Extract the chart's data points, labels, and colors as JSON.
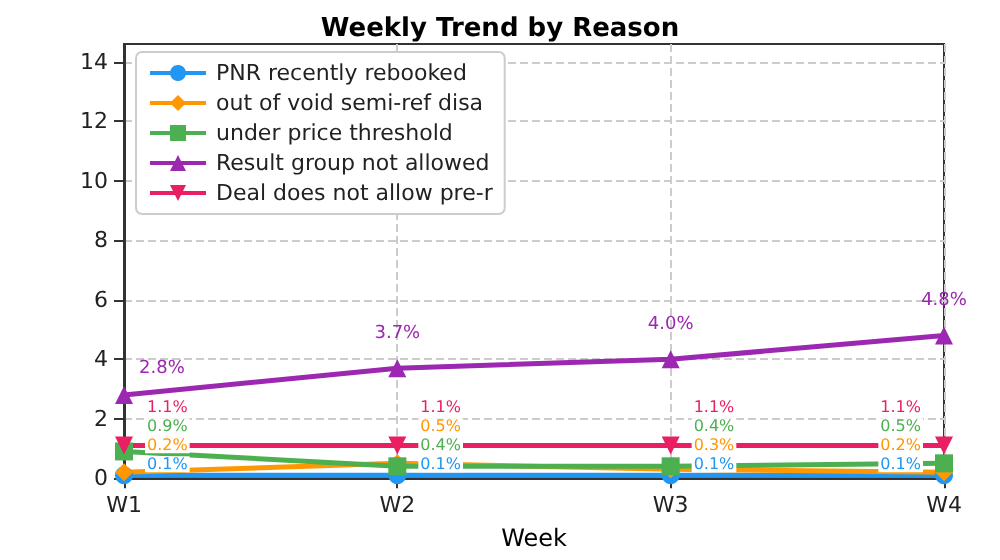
{
  "chart_data": {
    "type": "line",
    "title": "Weekly Trend by Reason",
    "xlabel": "Week",
    "categories": [
      "W1",
      "W2",
      "W3",
      "W4"
    ],
    "ylim": [
      0,
      14.6
    ],
    "yticks": [
      0,
      2,
      4,
      6,
      8,
      10,
      12,
      14
    ],
    "grid": true,
    "legend": "top left",
    "line_style": "solid",
    "series": [
      {
        "name": "PNR recently rebooked",
        "color": "#2196f3",
        "marker": "circle",
        "values": [
          0.1,
          0.1,
          0.1,
          0.1
        ],
        "value_labels": [
          "0.1%",
          "0.1%",
          "0.1%",
          "0.1%"
        ]
      },
      {
        "name": "out of void semi-ref disa",
        "color": "#ff9800",
        "marker": "diamond",
        "values": [
          0.2,
          0.5,
          0.3,
          0.2
        ],
        "value_labels": [
          "0.2%",
          "0.5%",
          "0.3%",
          "0.2%"
        ]
      },
      {
        "name": "under price threshold",
        "color": "#4caf50",
        "marker": "square",
        "values": [
          0.9,
          0.4,
          0.4,
          0.5
        ],
        "value_labels": [
          "0.9%",
          "0.4%",
          "0.4%",
          "0.5%"
        ]
      },
      {
        "name": "Result group not allowed",
        "color": "#9c27b0",
        "marker": "triangle",
        "values": [
          2.8,
          3.7,
          4.0,
          4.8
        ],
        "value_labels": [
          "2.8%",
          "3.7%",
          "4.0%",
          "4.8%"
        ]
      },
      {
        "name": "Deal does not allow pre-r",
        "color": "#e91e63",
        "marker": "triangle-down",
        "values": [
          1.1,
          1.1,
          1.1,
          1.1
        ],
        "value_labels": [
          "1.1%",
          "1.1%",
          "1.1%",
          "1.1%"
        ]
      }
    ]
  }
}
